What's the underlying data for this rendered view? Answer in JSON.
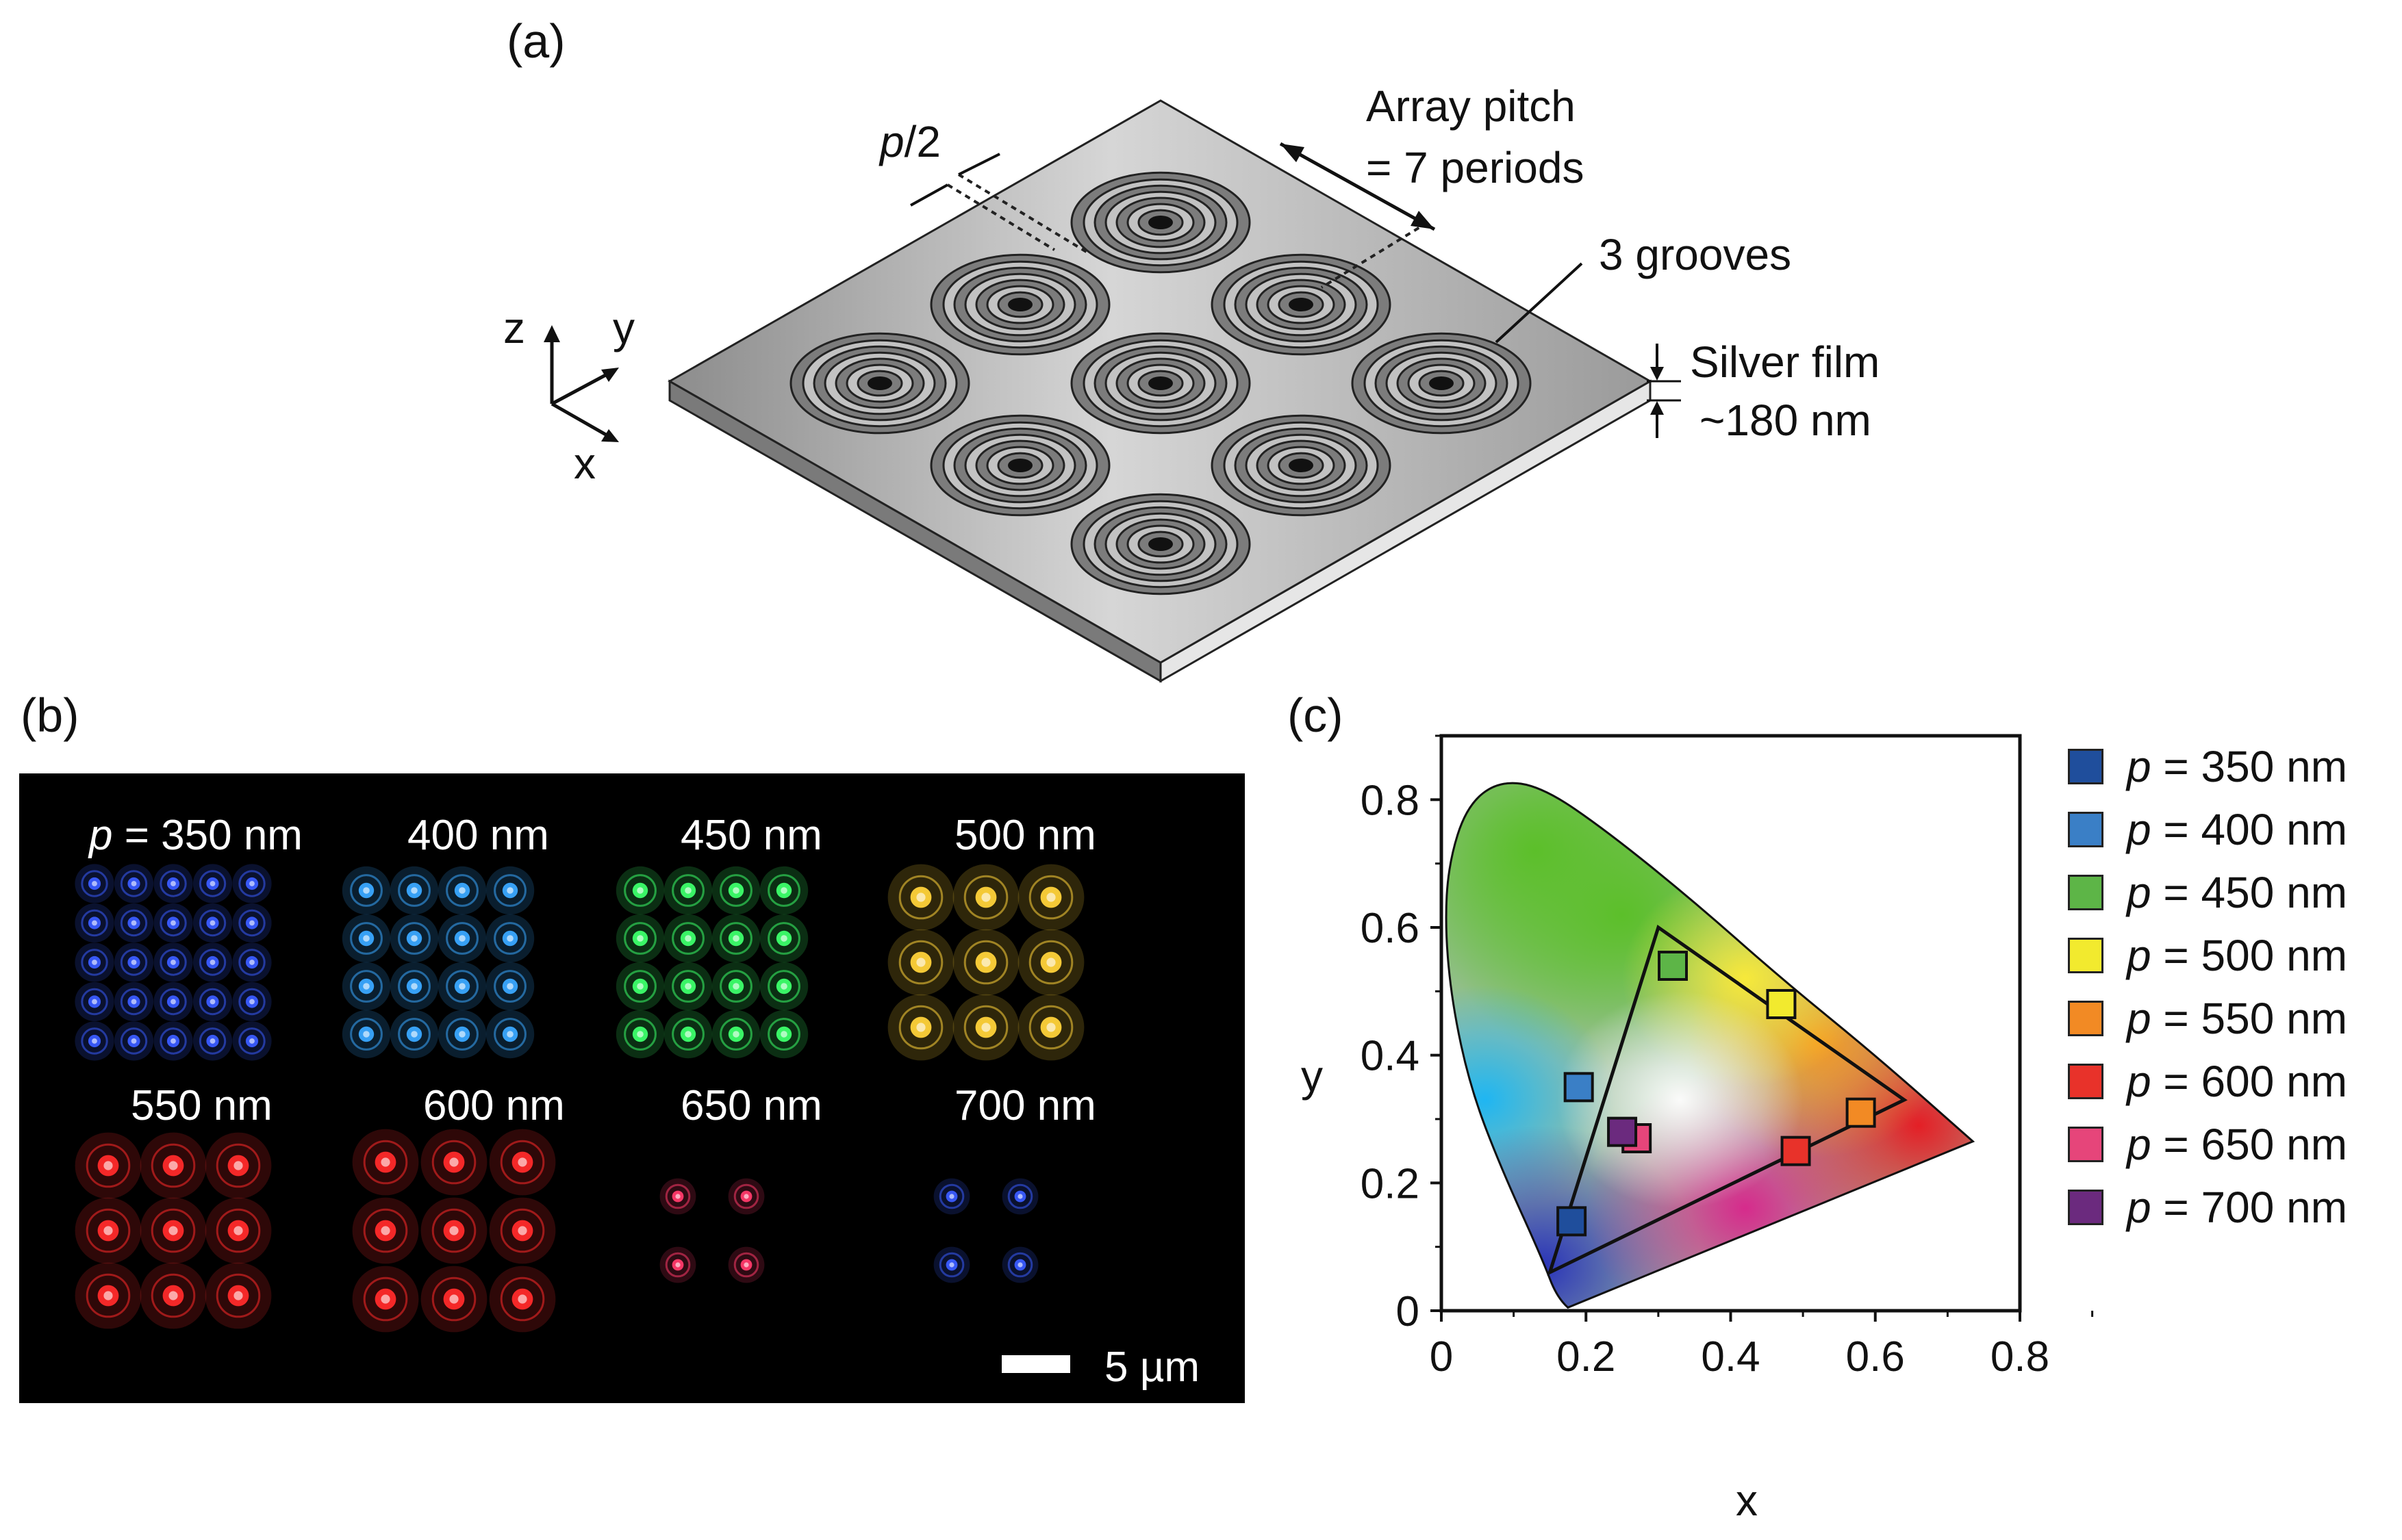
{
  "panel_a": {
    "label": "(a)",
    "axes": {
      "z": "z",
      "y": "y",
      "x": "x"
    },
    "half_period": {
      "p": "p",
      "rest": "/2"
    },
    "array_pitch_line1": "Array pitch",
    "array_pitch_line2": "= 7 periods",
    "grooves": "3 grooves",
    "film_line1": "Silver film",
    "film_line2": "~180 nm"
  },
  "panel_b": {
    "label": "(b)",
    "p_prefix": "p",
    "tiles": [
      {
        "label": "= 350 nm",
        "color": "#3a5cff",
        "grid": 5
      },
      {
        "label": "400 nm",
        "color": "#3aa8ff",
        "grid": 4
      },
      {
        "label": "450 nm",
        "color": "#3dff6a",
        "grid": 4
      },
      {
        "label": "500 nm",
        "color": "#ffd23a",
        "grid": 3
      },
      {
        "label": "550 nm",
        "color": "#ff2a2a",
        "grid": 3
      },
      {
        "label": "600 nm",
        "color": "#ff2a2a",
        "grid": 3
      },
      {
        "label": "650 nm",
        "color": "#ff3a6a",
        "grid": 2
      },
      {
        "label": "700 nm",
        "color": "#3a5cff",
        "grid": 2
      }
    ],
    "scale_bar": "5 µm"
  },
  "panel_c": {
    "label": "(c)",
    "legend": [
      {
        "p": "p",
        "text": "= 350 nm",
        "color": "#1f4e9c"
      },
      {
        "p": "p",
        "text": "= 400 nm",
        "color": "#3a7fc6"
      },
      {
        "p": "p",
        "text": "= 450 nm",
        "color": "#5db547"
      },
      {
        "p": "p",
        "text": "= 500 nm",
        "color": "#f2ea2e"
      },
      {
        "p": "p",
        "text": "= 550 nm",
        "color": "#f28a24"
      },
      {
        "p": "p",
        "text": "= 600 nm",
        "color": "#e8322a"
      },
      {
        "p": "p",
        "text": "= 650 nm",
        "color": "#e6457a"
      },
      {
        "p": "p",
        "text": "= 700 nm",
        "color": "#6b2a7e"
      }
    ]
  },
  "chart_data": {
    "type": "scatter",
    "title": "",
    "xlabel": "x",
    "ylabel": "y",
    "xlim": [
      0,
      0.8
    ],
    "ylim": [
      0,
      0.9
    ],
    "xticks": [
      "0",
      "0.2",
      "0.4",
      "0.6",
      "0.8"
    ],
    "yticks": [
      "0",
      "0.2",
      "0.4",
      "0.6",
      "0.8"
    ],
    "points": [
      {
        "name": "p = 350 nm",
        "x": 0.18,
        "y": 0.14,
        "color": "#1f4e9c"
      },
      {
        "name": "p = 400 nm",
        "x": 0.19,
        "y": 0.35,
        "color": "#3a7fc6"
      },
      {
        "name": "p = 450 nm",
        "x": 0.32,
        "y": 0.54,
        "color": "#5db547"
      },
      {
        "name": "p = 500 nm",
        "x": 0.47,
        "y": 0.48,
        "color": "#f2ea2e"
      },
      {
        "name": "p = 550 nm",
        "x": 0.58,
        "y": 0.31,
        "color": "#f28a24"
      },
      {
        "name": "p = 600 nm",
        "x": 0.49,
        "y": 0.25,
        "color": "#e8322a"
      },
      {
        "name": "p = 650 nm",
        "x": 0.27,
        "y": 0.27,
        "color": "#e6457a"
      },
      {
        "name": "p = 700 nm",
        "x": 0.25,
        "y": 0.28,
        "color": "#6b2a7e"
      }
    ],
    "gamut_triangle": [
      [
        0.3,
        0.6
      ],
      [
        0.64,
        0.33
      ],
      [
        0.15,
        0.06
      ]
    ],
    "locus": [
      [
        0.175,
        0.005
      ],
      [
        0.16,
        0.02
      ],
      [
        0.14,
        0.08
      ],
      [
        0.08,
        0.23
      ],
      [
        0.04,
        0.35
      ],
      [
        0.015,
        0.48
      ],
      [
        0.005,
        0.6
      ],
      [
        0.01,
        0.7
      ],
      [
        0.035,
        0.79
      ],
      [
        0.08,
        0.83
      ],
      [
        0.14,
        0.82
      ],
      [
        0.23,
        0.75
      ],
      [
        0.35,
        0.64
      ],
      [
        0.47,
        0.52
      ],
      [
        0.6,
        0.4
      ],
      [
        0.735,
        0.265
      ]
    ]
  }
}
